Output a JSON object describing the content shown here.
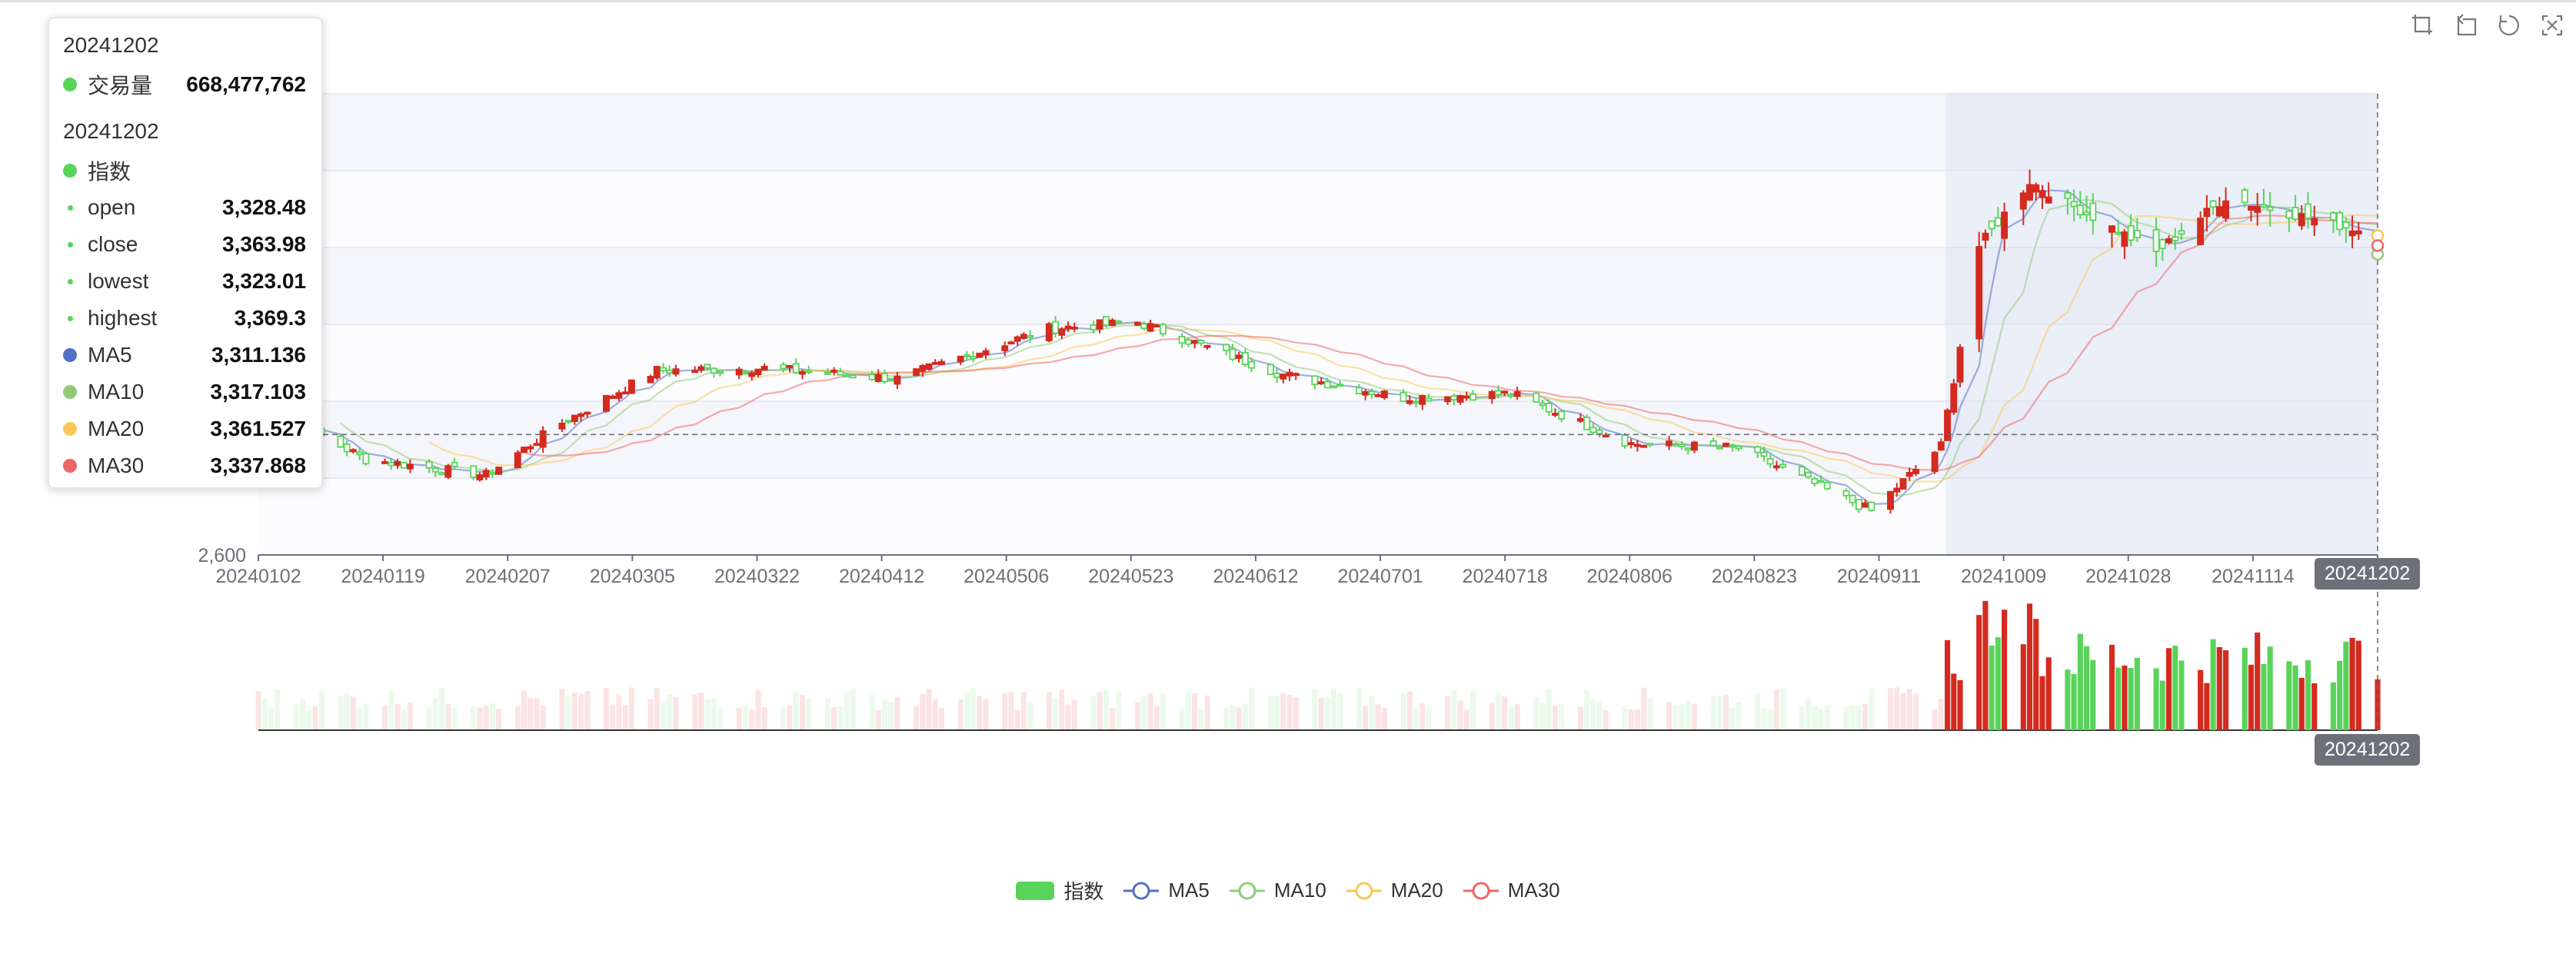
{
  "tooltip": {
    "date1": "20241202",
    "volume_label": "交易量",
    "volume_value": "668,477,762",
    "date2": "20241202",
    "index_label": "指数",
    "rows": [
      {
        "label": "open",
        "value": "3,328.48"
      },
      {
        "label": "close",
        "value": "3,363.98"
      },
      {
        "label": "lowest",
        "value": "3,323.01"
      },
      {
        "label": "highest",
        "value": "3,369.3"
      }
    ],
    "ma_rows": [
      {
        "label": "MA5",
        "value": "3,311.136"
      },
      {
        "label": "MA10",
        "value": "3,317.103"
      },
      {
        "label": "MA20",
        "value": "3,361.527"
      },
      {
        "label": "MA30",
        "value": "3,337.868"
      }
    ]
  },
  "axis_pointer": {
    "upper_label": "20241202",
    "lower_label": "20241202"
  },
  "toolbox": [
    "zoom-select-icon",
    "zoom-reset-icon",
    "restore-icon",
    "save-image-icon"
  ],
  "legend": [
    {
      "label": "指数",
      "icon": "rect",
      "color": "#5ad35a"
    },
    {
      "label": "MA5",
      "icon": "circle",
      "color": "#5470c6"
    },
    {
      "label": "MA10",
      "icon": "circle",
      "color": "#91cc75"
    },
    {
      "label": "MA20",
      "icon": "circle",
      "color": "#fac858"
    },
    {
      "label": "MA30",
      "icon": "circle",
      "color": "#ee6666"
    }
  ],
  "colors": {
    "up": "#d42a1f",
    "down": "#5ad35a",
    "ma5": "#5470c6",
    "ma10": "#91cc75",
    "ma20": "#fac858",
    "ma30": "#ee6666",
    "zoom_band": "#d7e0f1"
  },
  "chart_data": {
    "type": "candlestick",
    "x_tick_labels": [
      "20240102",
      "20240119",
      "20240207",
      "20240305",
      "20240322",
      "20240412",
      "20240506",
      "20240523",
      "20240612",
      "20240701",
      "20240718",
      "20240806",
      "20240823",
      "20240911",
      "20241009",
      "20241028",
      "20241114",
      "20241202"
    ],
    "y_tick_labels": [
      "2,600"
    ],
    "y_range": [
      2600,
      3700
    ],
    "series_names": [
      "指数",
      "MA5",
      "MA10",
      "MA20",
      "MA30",
      "交易量"
    ],
    "close_path": [
      {
        "x": "20240102",
        "y": 2962
      },
      {
        "x": "20240119",
        "y": 2828
      },
      {
        "x": "20240207",
        "y": 2790
      },
      {
        "x": "20240219",
        "y": 2915
      },
      {
        "x": "20240305",
        "y": 3040
      },
      {
        "x": "20240322",
        "y": 3045
      },
      {
        "x": "20240412",
        "y": 3020
      },
      {
        "x": "20240506",
        "y": 3140
      },
      {
        "x": "20240520",
        "y": 3155
      },
      {
        "x": "20240612",
        "y": 3030
      },
      {
        "x": "20240701",
        "y": 2975
      },
      {
        "x": "20240718",
        "y": 2985
      },
      {
        "x": "20240806",
        "y": 2865
      },
      {
        "x": "20240823",
        "y": 2855
      },
      {
        "x": "20240913",
        "y": 2705
      },
      {
        "x": "20240924",
        "y": 2860
      },
      {
        "x": "20240930",
        "y": 3336
      },
      {
        "x": "20241008",
        "y": 3490
      },
      {
        "x": "20241028",
        "y": 3322
      },
      {
        "x": "20241108",
        "y": 3452
      },
      {
        "x": "20241202",
        "y": 3364
      }
    ],
    "selected_point": {
      "date": "20241202",
      "open": 3328.48,
      "close": 3363.98,
      "lowest": 3323.01,
      "highest": 3369.3,
      "MA5": 3311.136,
      "MA10": 3317.103,
      "MA20": 3361.527,
      "MA30": 3337.868,
      "volume": 668477762
    },
    "zoom_window": [
      "20240925",
      "20241202"
    ]
  }
}
